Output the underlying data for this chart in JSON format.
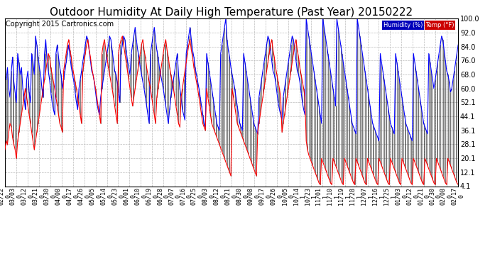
{
  "title": "Outdoor Humidity At Daily High Temperature (Past Year) 20150222",
  "copyright": "Copyright 2015 Cartronics.com",
  "legend_humidity": "Humidity (%)",
  "legend_temp": "Temp (°F)",
  "legend_humidity_bg": "#0000bb",
  "legend_temp_bg": "#cc0000",
  "ylim_min": 4.1,
  "ylim_max": 100.0,
  "yticks": [
    4.1,
    12.1,
    20.1,
    28.1,
    36.1,
    44.1,
    52.1,
    60.0,
    68.0,
    76.0,
    84.0,
    92.0,
    100.0
  ],
  "x_labels": [
    "02/22\n0",
    "03/03\n0",
    "03/12\n0",
    "03/21\n0",
    "03/30\n0",
    "04/08\n0",
    "04/17\n0",
    "04/26\n0",
    "05/05\n0",
    "05/14\n0",
    "05/23\n0",
    "06/01\n0",
    "06/10\n0",
    "06/19\n0",
    "06/28\n0",
    "07/07\n0",
    "07/16\n0",
    "07/25\n0",
    "08/03\n0",
    "08/12\n0",
    "08/21\n0",
    "08/30\n0",
    "09/08\n0",
    "09/17\n0",
    "09/26\n0",
    "10/05\n0",
    "10/14\n1",
    "10/23\n1",
    "11/01\n1",
    "11/10\n1",
    "11/19\n1",
    "11/28\n1",
    "12/07\n1",
    "12/16\n1",
    "12/25\n1",
    "01/03\n0",
    "01/12\n0",
    "01/21\n0",
    "01/30\n0",
    "02/08\n0",
    "02/17\n0"
  ],
  "bg_color": "#ffffff",
  "plot_bg": "#ffffff",
  "grid_color": "#bbbbbb",
  "humidity_color": "#0000ff",
  "temp_color": "#ff0000",
  "black_color": "#000000",
  "title_fontsize": 11,
  "tick_fontsize": 6,
  "copyright_fontsize": 7,
  "humidity_data": [
    68,
    65,
    72,
    60,
    55,
    70,
    78,
    64,
    58,
    52,
    80,
    75,
    68,
    72,
    60,
    55,
    48,
    65,
    70,
    58,
    52,
    80,
    75,
    68,
    90,
    85,
    78,
    72,
    68,
    60,
    55,
    80,
    88,
    76,
    70,
    65,
    58,
    52,
    48,
    45,
    80,
    85,
    78,
    72,
    68,
    60,
    65,
    70,
    75,
    80,
    85,
    78,
    72,
    68,
    64,
    58,
    52,
    48,
    60,
    65,
    70,
    75,
    80,
    85,
    90,
    88,
    82,
    76,
    70,
    68,
    64,
    58,
    52,
    48,
    45,
    55,
    60,
    65,
    70,
    75,
    80,
    85,
    90,
    88,
    82,
    76,
    70,
    68,
    64,
    58,
    52,
    80,
    85,
    90,
    88,
    82,
    76,
    72,
    68,
    80,
    85,
    90,
    95,
    88,
    82,
    78,
    72,
    68,
    64,
    60,
    55,
    50,
    45,
    40,
    80,
    85,
    90,
    95,
    88,
    82,
    78,
    72,
    68,
    64,
    60,
    55,
    50,
    45,
    40,
    48,
    55,
    60,
    65,
    70,
    75,
    80,
    68,
    60,
    55,
    48,
    45,
    42,
    80,
    85,
    90,
    95,
    88,
    82,
    78,
    72,
    68,
    64,
    60,
    55,
    50,
    45,
    40,
    38,
    80,
    75,
    70,
    65,
    60,
    55,
    50,
    45,
    40,
    38,
    36,
    80,
    85,
    90,
    95,
    100,
    88,
    82,
    78,
    72,
    68,
    64,
    60,
    55,
    50,
    45,
    40,
    38,
    36,
    80,
    75,
    70,
    65,
    60,
    55,
    50,
    45,
    40,
    38,
    36,
    34,
    55,
    60,
    65,
    70,
    75,
    80,
    85,
    90,
    88,
    82,
    76,
    70,
    68,
    64,
    58,
    52,
    48,
    45,
    42,
    55,
    60,
    65,
    70,
    75,
    80,
    85,
    90,
    88,
    82,
    76,
    70,
    68,
    64,
    58,
    52,
    48,
    45,
    100,
    95,
    90,
    85,
    80,
    75,
    70,
    65,
    60,
    55,
    50,
    45,
    40,
    100,
    95,
    90,
    85,
    80,
    75,
    70,
    65,
    60,
    55,
    50,
    100,
    95,
    90,
    85,
    80,
    75,
    70,
    65,
    60,
    55,
    50,
    45,
    40,
    38,
    36,
    34,
    100,
    95,
    90,
    85,
    80,
    75,
    70,
    65,
    60,
    55,
    50,
    45,
    40,
    38,
    36,
    34,
    32,
    30,
    80,
    75,
    70,
    65,
    60,
    55,
    50,
    45,
    40,
    38,
    36,
    34,
    80,
    75,
    70,
    65,
    60,
    55,
    50,
    45,
    40,
    38,
    36,
    34,
    32,
    30,
    80,
    75,
    70,
    65,
    60,
    55,
    50,
    45,
    40,
    38,
    36,
    34,
    80,
    75,
    70,
    65,
    60,
    65,
    70,
    75,
    80,
    85,
    90,
    88,
    82,
    76,
    70,
    68,
    64,
    58,
    60,
    65,
    70,
    75,
    80,
    85,
    90,
    88,
    82,
    76,
    70,
    68,
    64,
    58
  ],
  "temp_data": [
    25,
    30,
    28,
    35,
    40,
    38,
    32,
    28,
    25,
    20,
    30,
    35,
    40,
    45,
    50,
    55,
    60,
    55,
    50,
    45,
    40,
    35,
    30,
    25,
    30,
    35,
    40,
    45,
    50,
    55,
    60,
    65,
    70,
    75,
    80,
    78,
    72,
    68,
    64,
    60,
    55,
    50,
    45,
    40,
    38,
    35,
    70,
    75,
    80,
    85,
    88,
    82,
    78,
    72,
    68,
    64,
    60,
    55,
    50,
    45,
    40,
    70,
    75,
    80,
    85,
    88,
    82,
    78,
    72,
    68,
    64,
    60,
    55,
    50,
    45,
    40,
    80,
    85,
    88,
    82,
    78,
    72,
    68,
    64,
    60,
    55,
    50,
    45,
    40,
    80,
    85,
    88,
    90,
    85,
    80,
    75,
    70,
    65,
    60,
    55,
    50,
    55,
    60,
    65,
    70,
    75,
    80,
    85,
    88,
    82,
    78,
    72,
    68,
    64,
    60,
    55,
    50,
    45,
    40,
    55,
    60,
    65,
    70,
    75,
    80,
    85,
    88,
    82,
    78,
    72,
    68,
    64,
    60,
    55,
    50,
    45,
    40,
    38,
    55,
    60,
    65,
    70,
    75,
    80,
    85,
    88,
    82,
    78,
    72,
    68,
    64,
    60,
    55,
    50,
    45,
    40,
    38,
    36,
    60,
    55,
    50,
    45,
    40,
    38,
    36,
    34,
    32,
    30,
    28,
    26,
    24,
    22,
    20,
    18,
    16,
    14,
    12,
    10,
    60,
    55,
    50,
    45,
    40,
    38,
    36,
    34,
    32,
    30,
    28,
    26,
    24,
    22,
    20,
    18,
    16,
    14,
    12,
    10,
    35,
    40,
    45,
    50,
    55,
    60,
    65,
    70,
    75,
    80,
    85,
    88,
    82,
    78,
    72,
    68,
    64,
    60,
    55,
    35,
    40,
    45,
    50,
    55,
    60,
    65,
    70,
    75,
    80,
    85,
    88,
    82,
    78,
    72,
    68,
    64,
    60,
    55,
    30,
    25,
    22,
    20,
    18,
    16,
    14,
    12,
    10,
    8,
    6,
    5,
    20,
    18,
    16,
    14,
    12,
    10,
    8,
    6,
    5,
    20,
    18,
    16,
    14,
    12,
    10,
    8,
    6,
    5,
    20,
    18,
    16,
    14,
    12,
    10,
    8,
    6,
    5,
    20,
    18,
    16,
    14,
    12,
    10,
    8,
    6,
    5,
    20,
    18,
    16,
    14,
    12,
    10,
    8,
    6,
    5,
    20,
    18,
    16,
    14,
    12,
    10,
    8,
    6,
    5,
    20,
    18,
    16,
    14,
    12,
    10,
    8,
    6,
    5,
    20,
    18,
    16,
    14,
    12,
    10,
    8,
    6,
    5,
    20,
    18,
    16,
    14,
    12,
    10,
    8,
    6,
    5,
    20,
    18,
    16,
    14,
    12,
    10,
    8,
    6,
    5,
    20,
    18,
    16,
    14,
    12,
    10,
    8,
    6,
    5,
    20,
    18,
    16,
    14,
    12,
    10,
    8,
    6,
    5
  ]
}
